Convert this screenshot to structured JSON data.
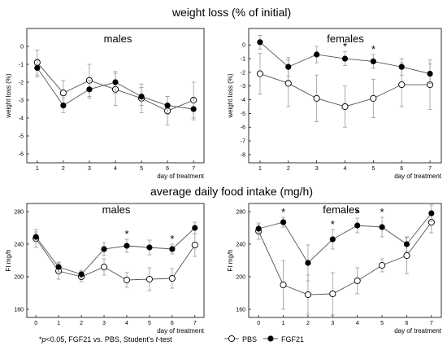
{
  "headings": {
    "weight": "weight loss (% of initial)",
    "food": "average daily food intake (mg/h)"
  },
  "footnote": {
    "star": "*",
    "p": "p",
    "rest": "<0.05, FGF21 vs. PBS, Student's ",
    "t": "t",
    "end": "-test"
  },
  "legend": [
    {
      "label": "PBS",
      "marker": "open-circle"
    },
    {
      "label": "FGF21",
      "marker": "filled-circle"
    }
  ],
  "colors": {
    "axis": "#000000",
    "open_fill": "#ffffff",
    "filled": "#000000",
    "line": "#555555",
    "error": "#999999"
  },
  "chart_data": [
    {
      "type": "line",
      "title": "males",
      "xlabel": "day of treatment",
      "ylabel": "weight loss (%)",
      "xlim": [
        0.6,
        7.4
      ],
      "ylim": [
        -6.5,
        1.0
      ],
      "x_ticks": [
        1,
        2,
        3,
        4,
        5,
        6,
        7
      ],
      "y_ticks": [
        0,
        -1,
        -2,
        -3,
        -4,
        -5,
        -6
      ],
      "x": [
        1,
        2,
        3,
        4,
        5,
        6,
        7
      ],
      "series": [
        {
          "name": "PBS",
          "values": [
            -0.9,
            -2.6,
            -1.9,
            -2.4,
            -2.9,
            -3.6,
            -3.0
          ],
          "err": [
            0.7,
            0.7,
            0.9,
            0.9,
            0.8,
            0.8,
            1.0
          ],
          "markers": "open"
        },
        {
          "name": "FGF21",
          "values": [
            -1.2,
            -3.3,
            -2.4,
            -2.0,
            -2.8,
            -3.3,
            -3.5
          ],
          "err": [
            0.5,
            0.4,
            0.5,
            0.6,
            0.5,
            0.5,
            0.6
          ],
          "markers": "filled"
        }
      ],
      "significant_x": []
    },
    {
      "type": "line",
      "title": "females",
      "xlabel": "day of treatment",
      "ylabel": "weight loss (%)",
      "xlim": [
        0.6,
        7.4
      ],
      "ylim": [
        -8.6,
        1.2
      ],
      "x_ticks": [
        1,
        2,
        3,
        4,
        5,
        6,
        7
      ],
      "y_ticks": [
        0,
        -1,
        -2,
        -3,
        -4,
        -5,
        -6,
        -7,
        -8
      ],
      "x": [
        1,
        2,
        3,
        4,
        5,
        6,
        7
      ],
      "series": [
        {
          "name": "PBS",
          "values": [
            -2.1,
            -2.8,
            -3.9,
            -4.5,
            -3.9,
            -2.9,
            -2.9
          ],
          "err": [
            1.5,
            1.7,
            1.7,
            1.5,
            1.4,
            1.6,
            1.8
          ],
          "markers": "open"
        },
        {
          "name": "FGF21",
          "values": [
            0.2,
            -1.6,
            -0.7,
            -1.0,
            -1.2,
            -1.6,
            -2.1
          ],
          "err": [
            0.5,
            0.7,
            0.6,
            0.5,
            0.5,
            0.6,
            0.7
          ],
          "markers": "filled"
        }
      ],
      "significant_x": [
        4,
        5
      ]
    },
    {
      "type": "line",
      "title": "males",
      "xlabel": "day of treatment",
      "ylabel": "FI mg/h",
      "xlim": [
        -0.4,
        7.4
      ],
      "ylim": [
        150,
        290
      ],
      "x_ticks": [
        0,
        1,
        2,
        3,
        4,
        5,
        6,
        7
      ],
      "y_ticks": [
        160,
        200,
        240,
        280
      ],
      "x": [
        0,
        1,
        2,
        3,
        4,
        5,
        6,
        7
      ],
      "series": [
        {
          "name": "PBS",
          "values": [
            247,
            207,
            200,
            212,
            196,
            197,
            198,
            239
          ],
          "err": [
            11,
            10,
            6,
            10,
            9,
            14,
            12,
            14
          ],
          "markers": "open"
        },
        {
          "name": "FGF21",
          "values": [
            249,
            212,
            203,
            234,
            238,
            236,
            234,
            260
          ],
          "err": [
            6,
            6,
            5,
            8,
            8,
            9,
            6,
            7
          ],
          "markers": "filled"
        }
      ],
      "significant_x": [
        4,
        6
      ]
    },
    {
      "type": "line",
      "title": "females",
      "xlabel": "day of treatment",
      "ylabel": "FI mg/h",
      "xlim": [
        -0.4,
        7.4
      ],
      "ylim": [
        150,
        290
      ],
      "x_ticks": [
        0,
        1,
        2,
        3,
        4,
        5,
        6,
        7
      ],
      "y_ticks": [
        160,
        200,
        240,
        280
      ],
      "x": [
        0,
        1,
        2,
        3,
        4,
        5,
        6,
        7
      ],
      "series": [
        {
          "name": "PBS",
          "values": [
            256,
            190,
            178,
            179,
            195,
            214,
            226,
            267
          ],
          "err": [
            10,
            30,
            24,
            26,
            16,
            8,
            22,
            13
          ],
          "markers": "open"
        },
        {
          "name": "FGF21",
          "values": [
            259,
            267,
            217,
            246,
            263,
            261,
            240,
            278
          ],
          "err": [
            5,
            6,
            22,
            12,
            9,
            12,
            9,
            10
          ],
          "markers": "filled"
        }
      ],
      "significant_x": [
        1,
        3,
        4,
        5
      ]
    }
  ]
}
